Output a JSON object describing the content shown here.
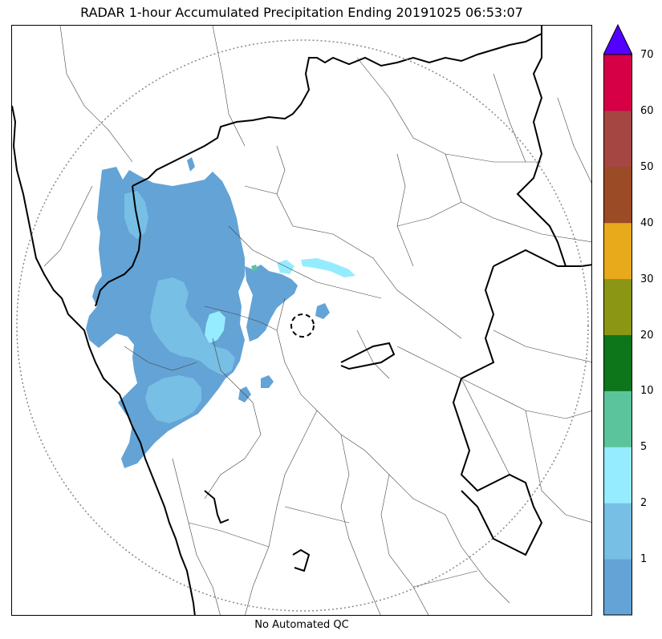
{
  "title": "RADAR 1-hour Accumulated Precipitation Ending 20191025 06:53:07",
  "caption": "No Automated QC",
  "colorbar": {
    "tick_labels": [
      "1",
      "2",
      "5",
      "10",
      "20",
      "30",
      "40",
      "50",
      "60",
      "70"
    ],
    "bins": [
      {
        "color": "#64a3d5"
      },
      {
        "color": "#77bfe4"
      },
      {
        "color": "#96ecff"
      },
      {
        "color": "#5cc49c"
      },
      {
        "color": "#0d761b"
      },
      {
        "color": "#8b9614"
      },
      {
        "color": "#e8a91b"
      },
      {
        "color": "#9b4b26"
      },
      {
        "color": "#a54642"
      },
      {
        "color": "#d60046"
      }
    ],
    "extend_color": "#5200ff"
  },
  "map": {
    "range_ring": "dotted",
    "radar_marker": "dashed-circle",
    "precip_colors": {
      "light": "#64a3d5",
      "moderate": "#77bfe4",
      "heavy": "#96ecff",
      "spot": "#5cc49c"
    }
  }
}
